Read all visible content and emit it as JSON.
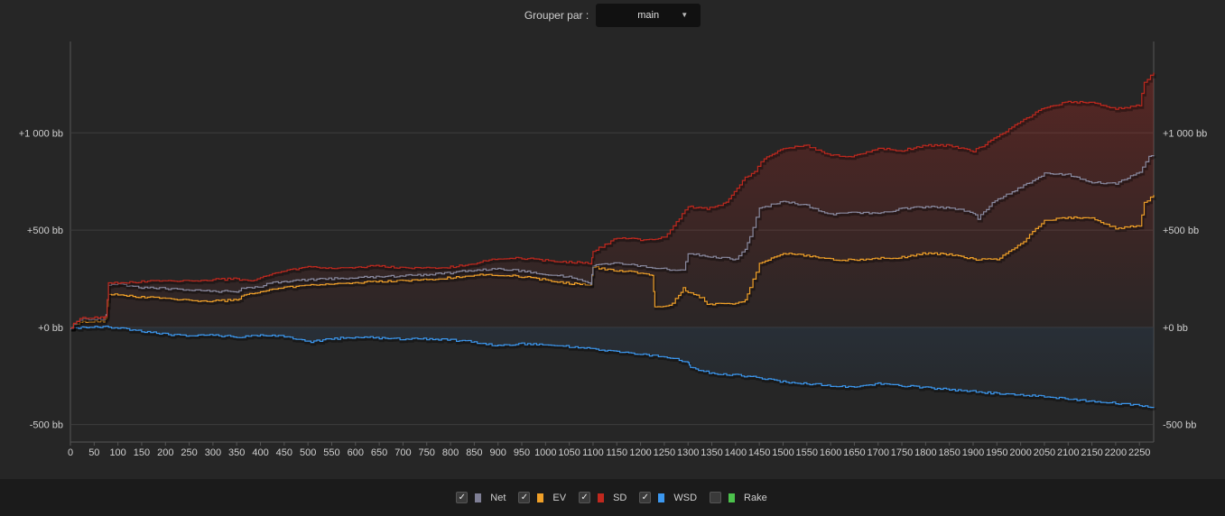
{
  "header": {
    "group_by_label": "Grouper par :",
    "group_by_value": "main",
    "dropdown_arrow": "▼"
  },
  "chart_data": {
    "type": "line",
    "y_ticks": [
      {
        "value": 1000,
        "label": "+1 000 bb"
      },
      {
        "value": 500,
        "label": "+500 bb"
      },
      {
        "value": 0,
        "label": "+0 bb"
      },
      {
        "value": -500,
        "label": "-500 bb"
      }
    ],
    "x_ticks": [
      0,
      50,
      100,
      150,
      200,
      250,
      300,
      350,
      400,
      450,
      500,
      550,
      600,
      650,
      700,
      750,
      800,
      850,
      900,
      950,
      1000,
      1050,
      1100,
      1150,
      1200,
      1250,
      1300,
      1350,
      1400,
      1450,
      1500,
      1550,
      1600,
      1650,
      1700,
      1750,
      1800,
      1850,
      1900,
      1950,
      2000,
      2050,
      2100,
      2150,
      2200,
      2250
    ],
    "xlim": [
      0,
      2280
    ],
    "ylim": [
      -590,
      1470
    ],
    "grid": true,
    "series": [
      {
        "name": "Net",
        "color": "#8a8aa0",
        "visible": true,
        "x": [
          0,
          20,
          70,
          75,
          80,
          100,
          150,
          200,
          250,
          300,
          350,
          360,
          400,
          420,
          450,
          500,
          550,
          600,
          650,
          700,
          750,
          800,
          850,
          900,
          950,
          1000,
          1050,
          1095,
          1100,
          1150,
          1200,
          1250,
          1290,
          1300,
          1330,
          1400,
          1420,
          1430,
          1450,
          1500,
          1550,
          1600,
          1650,
          1700,
          1750,
          1800,
          1850,
          1900,
          1910,
          1940,
          2000,
          2050,
          2100,
          2150,
          2200,
          2250,
          2270,
          2280
        ],
        "y": [
          0,
          40,
          40,
          60,
          220,
          220,
          205,
          200,
          190,
          185,
          185,
          200,
          210,
          230,
          235,
          245,
          250,
          255,
          260,
          265,
          270,
          280,
          295,
          300,
          290,
          270,
          260,
          225,
          320,
          330,
          315,
          300,
          290,
          380,
          370,
          350,
          400,
          470,
          610,
          650,
          625,
          580,
          590,
          585,
          610,
          620,
          615,
          590,
          560,
          640,
          720,
          790,
          785,
          745,
          740,
          800,
          880,
          880
        ]
      },
      {
        "name": "EV",
        "color": "#f0a028",
        "visible": true,
        "x": [
          0,
          20,
          70,
          75,
          80,
          100,
          150,
          200,
          250,
          300,
          350,
          360,
          400,
          450,
          500,
          550,
          600,
          650,
          700,
          750,
          800,
          850,
          900,
          950,
          1000,
          1050,
          1095,
          1100,
          1150,
          1200,
          1225,
          1230,
          1260,
          1280,
          1290,
          1300,
          1330,
          1340,
          1400,
          1420,
          1430,
          1450,
          1500,
          1550,
          1600,
          1650,
          1700,
          1750,
          1800,
          1850,
          1900,
          1950,
          2000,
          2050,
          2100,
          2150,
          2200,
          2250,
          2260,
          2280
        ],
        "y": [
          0,
          30,
          30,
          50,
          170,
          170,
          155,
          150,
          140,
          135,
          140,
          160,
          185,
          205,
          215,
          225,
          230,
          235,
          240,
          245,
          255,
          270,
          270,
          260,
          245,
          225,
          220,
          310,
          290,
          280,
          270,
          100,
          110,
          160,
          200,
          180,
          150,
          120,
          120,
          140,
          200,
          330,
          380,
          370,
          350,
          345,
          355,
          360,
          380,
          375,
          350,
          350,
          430,
          550,
          565,
          560,
          510,
          520,
          640,
          680
        ]
      },
      {
        "name": "SD",
        "color": "#c0281e",
        "visible": true,
        "x": [
          0,
          20,
          70,
          75,
          80,
          100,
          150,
          200,
          250,
          300,
          350,
          380,
          400,
          450,
          500,
          550,
          600,
          650,
          700,
          750,
          800,
          850,
          900,
          950,
          1000,
          1050,
          1095,
          1100,
          1150,
          1200,
          1250,
          1300,
          1340,
          1380,
          1420,
          1440,
          1460,
          1500,
          1550,
          1600,
          1650,
          1700,
          1750,
          1800,
          1850,
          1900,
          1950,
          2000,
          2050,
          2100,
          2150,
          2200,
          2250,
          2260,
          2280
        ],
        "y": [
          0,
          50,
          50,
          60,
          230,
          230,
          235,
          240,
          240,
          245,
          250,
          235,
          260,
          290,
          310,
          305,
          310,
          315,
          305,
          305,
          310,
          330,
          355,
          355,
          345,
          335,
          330,
          390,
          460,
          450,
          460,
          620,
          610,
          640,
          770,
          800,
          870,
          920,
          935,
          885,
          880,
          920,
          910,
          935,
          935,
          905,
          980,
          1060,
          1130,
          1160,
          1155,
          1125,
          1140,
          1260,
          1310
        ]
      },
      {
        "name": "WSD",
        "color": "#3c98f0",
        "visible": true,
        "x": [
          0,
          40,
          80,
          100,
          150,
          200,
          250,
          300,
          350,
          400,
          450,
          500,
          550,
          600,
          650,
          700,
          750,
          800,
          850,
          900,
          950,
          1000,
          1050,
          1100,
          1150,
          1200,
          1250,
          1300,
          1305,
          1350,
          1400,
          1450,
          1500,
          1550,
          1600,
          1650,
          1700,
          1750,
          1800,
          1850,
          1900,
          1950,
          2000,
          2050,
          2100,
          2150,
          2200,
          2250,
          2280
        ],
        "y": [
          -5,
          0,
          2,
          -5,
          -20,
          -35,
          -45,
          -40,
          -50,
          -40,
          -45,
          -75,
          -60,
          -50,
          -55,
          -60,
          -60,
          -65,
          -75,
          -95,
          -85,
          -90,
          -100,
          -110,
          -125,
          -140,
          -150,
          -180,
          -210,
          -235,
          -245,
          -260,
          -280,
          -290,
          -300,
          -310,
          -290,
          -300,
          -310,
          -320,
          -330,
          -340,
          -350,
          -355,
          -370,
          -380,
          -390,
          -400,
          -415
        ]
      },
      {
        "name": "Rake",
        "color": "#4cc24c",
        "visible": false,
        "x": [],
        "y": []
      }
    ]
  },
  "legend": [
    {
      "label": "Net",
      "checked": true,
      "color": "#7f7f95"
    },
    {
      "label": "EV",
      "checked": true,
      "color": "#f0a028"
    },
    {
      "label": "SD",
      "checked": true,
      "color": "#c0281e"
    },
    {
      "label": "WSD",
      "checked": true,
      "color": "#3c98f0"
    },
    {
      "label": "Rake",
      "checked": false,
      "color": "#4cc24c"
    }
  ],
  "check_glyph": "✓"
}
